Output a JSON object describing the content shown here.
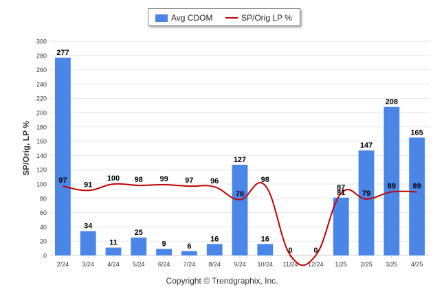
{
  "chart_data": {
    "type": "bar",
    "categories": [
      "2/24",
      "3/24",
      "4/24",
      "5/24",
      "6/24",
      "7/24",
      "8/24",
      "9/24",
      "10/24",
      "11/24",
      "12/24",
      "1/25",
      "2/25",
      "3/25",
      "4/25"
    ],
    "series": [
      {
        "name": "Avg CDOM",
        "type": "bar",
        "color": "#4a86e8",
        "values": [
          277,
          34,
          11,
          25,
          9,
          6,
          16,
          127,
          16,
          0,
          0,
          81,
          147,
          208,
          165
        ]
      },
      {
        "name": "SP/Orig LP %",
        "type": "line",
        "color": "#c00000",
        "values": [
          97,
          91,
          100,
          98,
          99,
          97,
          96,
          78,
          98,
          0,
          0,
          87,
          79,
          89,
          89
        ]
      }
    ],
    "ylabel": "SP/Orig, LP %",
    "ylim": [
      0,
      300
    ],
    "yticks": [
      0,
      20,
      40,
      60,
      80,
      100,
      120,
      140,
      160,
      180,
      200,
      220,
      240,
      260,
      280,
      300
    ],
    "grid": true,
    "legend": "top-center",
    "copyright": "Copyright © Trendgraphix, Inc."
  }
}
